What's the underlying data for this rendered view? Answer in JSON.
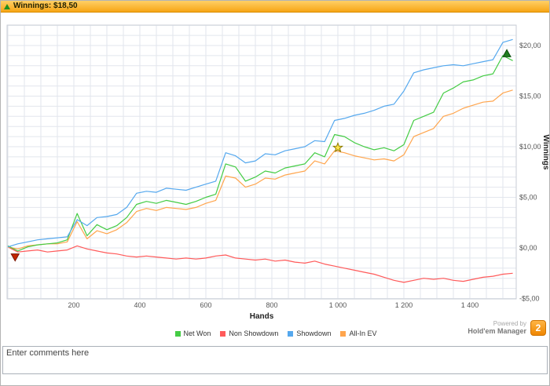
{
  "titlebar": {
    "label": "Winnings: $18,50"
  },
  "comments": {
    "placeholder": "Enter comments here"
  },
  "powered": {
    "line1": "Powered by",
    "line2": "Hold'em Manager",
    "badge": "2"
  },
  "chart_data": {
    "type": "line",
    "title": "",
    "xlabel": "Hands",
    "ylabel": "Winnings",
    "xlim": [
      0,
      1560
    ],
    "ylim": [
      -5,
      22
    ],
    "grid": {
      "x_minor": 50,
      "y_minor": 1,
      "color": "#e2e6ed"
    },
    "x_ticks": [
      {
        "v": 200,
        "label": "200"
      },
      {
        "v": 400,
        "label": "400"
      },
      {
        "v": 600,
        "label": "600"
      },
      {
        "v": 800,
        "label": "800"
      },
      {
        "v": 1000,
        "label": "1 000"
      },
      {
        "v": 1200,
        "label": "1 200"
      },
      {
        "v": 1400,
        "label": "1 400"
      }
    ],
    "y_ticks": [
      {
        "v": -5,
        "label": "-$5,00"
      },
      {
        "v": 0,
        "label": "$0,00"
      },
      {
        "v": 5,
        "label": "$5,00"
      },
      {
        "v": 10,
        "label": "$10,00"
      },
      {
        "v": 15,
        "label": "$15,00"
      },
      {
        "v": 20,
        "label": "$20,00"
      }
    ],
    "x_start": 0,
    "x_step": 30,
    "series": [
      {
        "name": "Net Won",
        "color": "#44cc44",
        "values": [
          0.2,
          -0.3,
          0.1,
          0.3,
          0.4,
          0.5,
          0.8,
          3.4,
          1.2,
          2.3,
          1.8,
          2.2,
          3.0,
          4.3,
          4.6,
          4.4,
          4.7,
          4.5,
          4.3,
          4.6,
          5.0,
          5.3,
          8.3,
          8.0,
          6.6,
          7.0,
          7.6,
          7.4,
          7.9,
          8.1,
          8.3,
          9.4,
          9.0,
          11.2,
          11.0,
          10.4,
          10.0,
          9.7,
          9.9,
          9.6,
          10.2,
          12.6,
          13.0,
          13.4,
          15.3,
          15.8,
          16.4,
          16.6,
          17.0,
          17.2,
          19.0,
          18.5
        ]
      },
      {
        "name": "Non Showdown",
        "color": "#ff5a5a",
        "values": [
          0.1,
          -0.4,
          -0.3,
          -0.2,
          -0.4,
          -0.3,
          -0.2,
          0.2,
          -0.1,
          -0.3,
          -0.5,
          -0.6,
          -0.8,
          -0.9,
          -0.8,
          -0.9,
          -1.0,
          -1.1,
          -1.0,
          -1.1,
          -1.0,
          -0.8,
          -0.7,
          -1.0,
          -1.1,
          -1.2,
          -1.1,
          -1.3,
          -1.2,
          -1.4,
          -1.5,
          -1.3,
          -1.6,
          -1.8,
          -2.0,
          -2.2,
          -2.4,
          -2.6,
          -2.9,
          -3.2,
          -3.4,
          -3.2,
          -3.0,
          -3.1,
          -3.0,
          -3.2,
          -3.3,
          -3.1,
          -2.9,
          -2.8,
          -2.6,
          -2.5
        ]
      },
      {
        "name": "Showdown",
        "color": "#55a8ee",
        "values": [
          0.1,
          0.4,
          0.6,
          0.8,
          0.9,
          1.0,
          1.1,
          2.8,
          2.2,
          3.0,
          3.1,
          3.3,
          4.0,
          5.4,
          5.6,
          5.5,
          5.9,
          5.8,
          5.7,
          6.0,
          6.3,
          6.6,
          9.4,
          9.1,
          8.4,
          8.6,
          9.3,
          9.2,
          9.6,
          9.8,
          10.0,
          10.6,
          10.5,
          12.6,
          12.8,
          13.1,
          13.3,
          13.6,
          14.0,
          14.2,
          15.5,
          17.3,
          17.6,
          17.8,
          18.0,
          18.1,
          18.0,
          18.2,
          18.4,
          18.6,
          20.3,
          20.6
        ]
      },
      {
        "name": "All-In EV",
        "color": "#ffa54d",
        "values": [
          0.1,
          -0.1,
          0.2,
          0.3,
          0.4,
          0.4,
          0.6,
          2.6,
          0.9,
          1.7,
          1.4,
          1.8,
          2.5,
          3.6,
          3.9,
          3.7,
          4.0,
          3.9,
          3.8,
          4.0,
          4.4,
          4.7,
          7.1,
          6.9,
          6.0,
          6.3,
          6.9,
          6.8,
          7.2,
          7.4,
          7.6,
          8.6,
          8.3,
          9.6,
          9.4,
          9.1,
          8.9,
          8.7,
          8.8,
          8.6,
          9.2,
          11.0,
          11.4,
          11.8,
          13.0,
          13.3,
          13.8,
          14.1,
          14.4,
          14.5,
          15.3,
          15.6
        ]
      }
    ],
    "markers": [
      {
        "type": "triangle-down",
        "color": "#c32500",
        "stroke": "#7a1500",
        "x": 22,
        "y": -0.9
      },
      {
        "type": "star",
        "color": "#ffe24a",
        "stroke": "#8a7a00",
        "x": 1000,
        "y": 9.9
      },
      {
        "type": "triangle-up",
        "color": "#1e7d1e",
        "stroke": "#0f4f0f",
        "x": 1512,
        "y": 19.2
      }
    ]
  }
}
